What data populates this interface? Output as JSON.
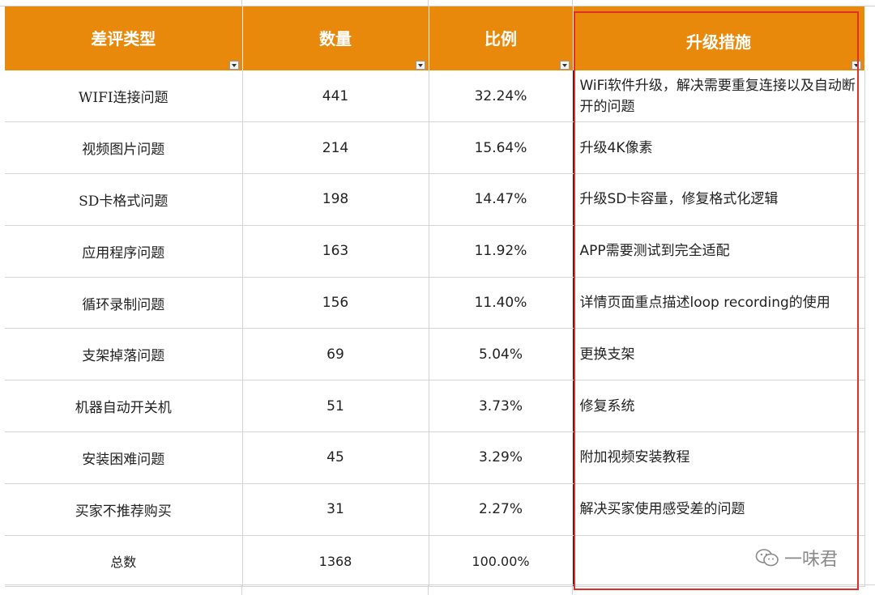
{
  "table": {
    "headers": [
      "差评类型",
      "数量",
      "比例",
      "升级措施"
    ],
    "rows": [
      {
        "type": "WIFI连接问题",
        "count": "441",
        "ratio": "32.24%",
        "measure": "WiFi软件升级，解决需要重复连接以及自动断开的问题"
      },
      {
        "type": "视频图片问题",
        "count": "214",
        "ratio": "15.64%",
        "measure": "升级4K像素"
      },
      {
        "type": "SD卡格式问题",
        "count": "198",
        "ratio": "14.47%",
        "measure": "升级SD卡容量，修复格式化逻辑"
      },
      {
        "type": "应用程序问题",
        "count": "163",
        "ratio": "11.92%",
        "measure": "APP需要测试到完全适配"
      },
      {
        "type": "循环录制问题",
        "count": "156",
        "ratio": "11.40%",
        "measure": "详情页面重点描述loop recording的使用"
      },
      {
        "type": "支架掉落问题",
        "count": "69",
        "ratio": "5.04%",
        "measure": "更换支架"
      },
      {
        "type": "机器自动开关机",
        "count": "51",
        "ratio": "3.73%",
        "measure": "修复系统"
      },
      {
        "type": "安装困难问题",
        "count": "45",
        "ratio": "3.29%",
        "measure": "附加视频安装教程"
      },
      {
        "type": "买家不推荐购买",
        "count": "31",
        "ratio": "2.27%",
        "measure": "解决买家使用感受差的问题"
      }
    ],
    "total": {
      "type": "总数",
      "count": "1368",
      "ratio": "100.00%",
      "measure": ""
    }
  },
  "watermark": {
    "text": "一味君",
    "icon": "wechat-icon"
  },
  "colors": {
    "header_bg": "#E8890B",
    "header_text": "#FFFFFF",
    "highlight_box": "#E0302A"
  }
}
